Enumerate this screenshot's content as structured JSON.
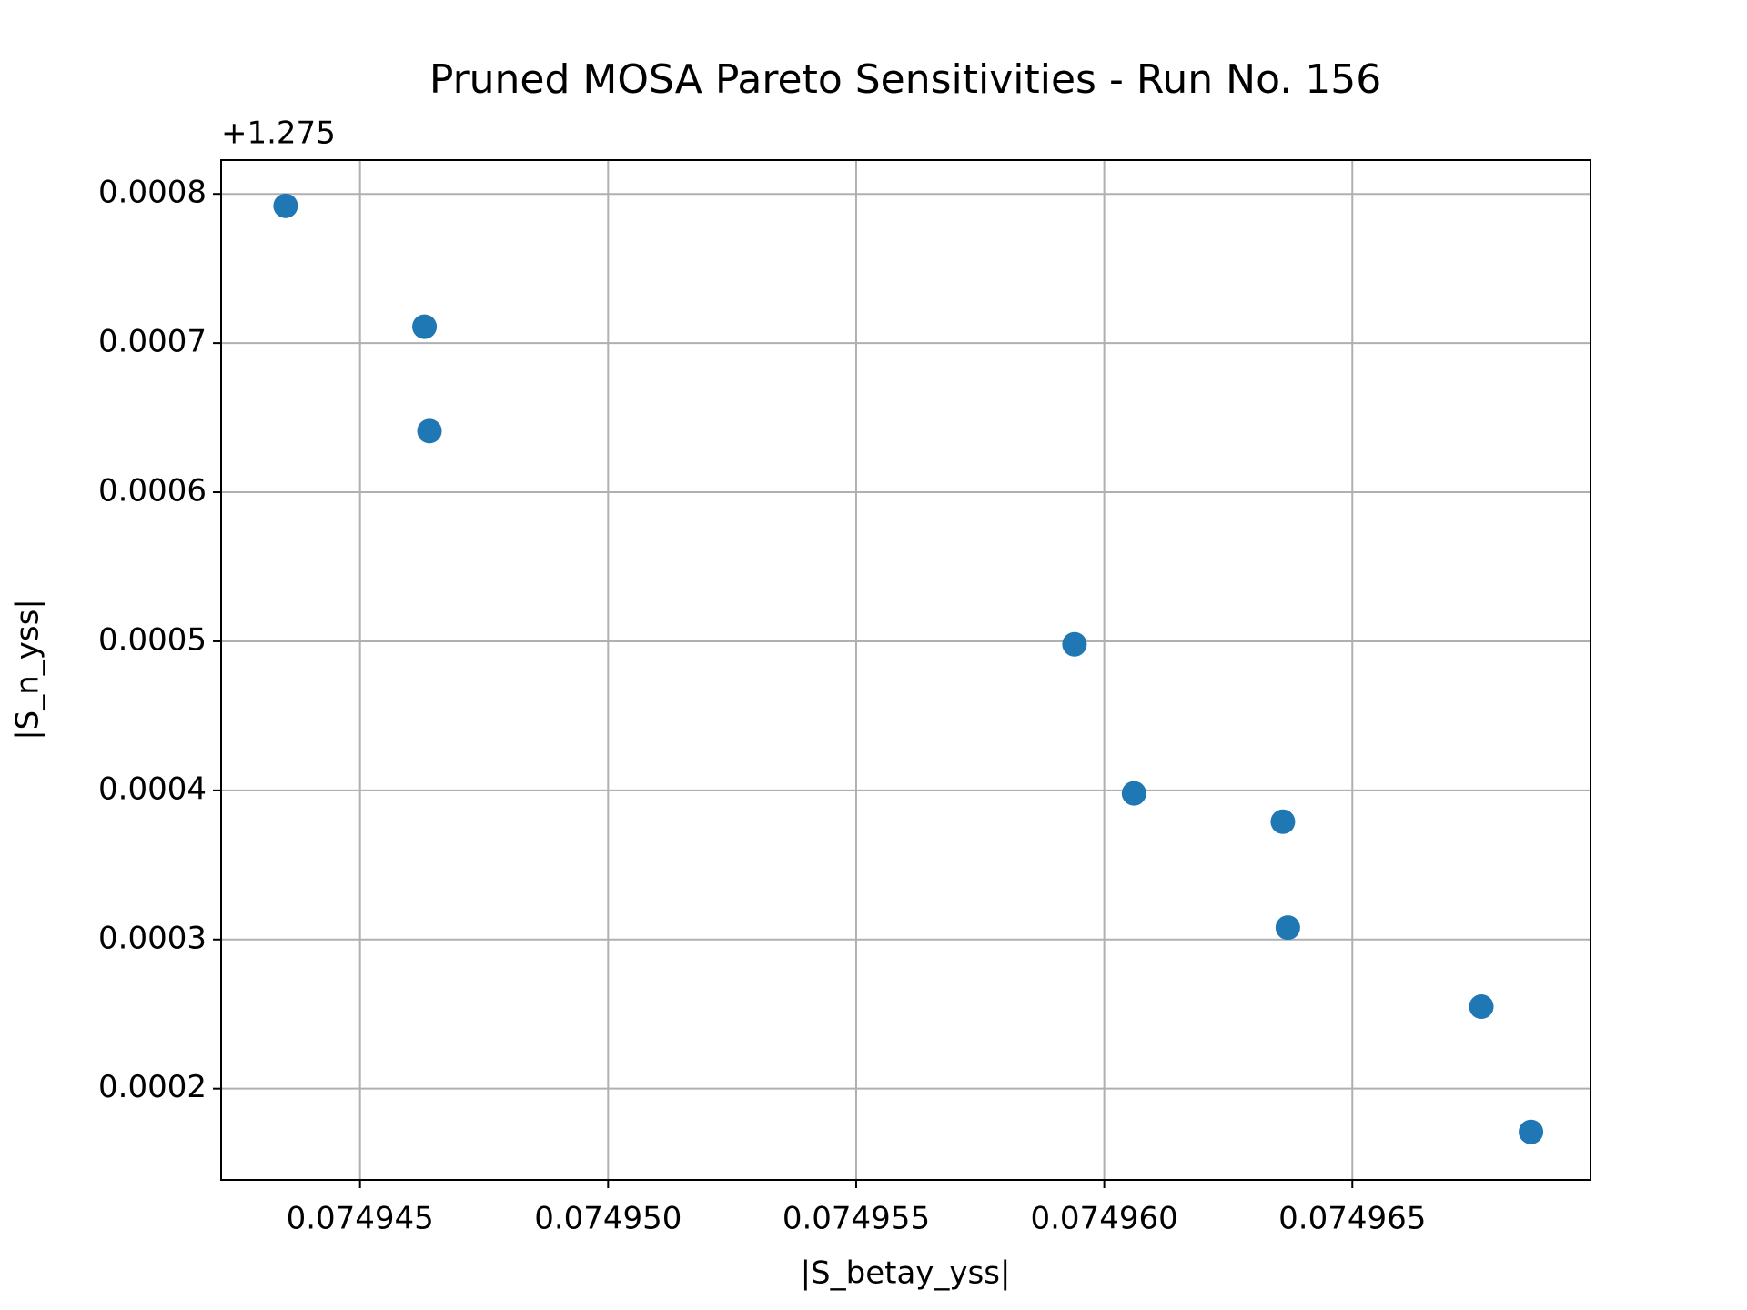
{
  "chart_data": {
    "type": "scatter",
    "title": "Pruned MOSA Pareto Sensitivities - Run No. 156",
    "xlabel": "|S_betay_yss|",
    "ylabel": "|S_n_yss|",
    "y_offset_label": "+1.275",
    "x": [
      0.0749435,
      0.0749463,
      0.0749464,
      0.0749594,
      0.0749606,
      0.0749636,
      0.0749637,
      0.0749676,
      0.0749686
    ],
    "values": [
      0.000792,
      0.000711,
      0.000641,
      0.000498,
      0.000398,
      0.000379,
      0.000308,
      0.000255,
      0.000171
    ],
    "color": "#1f77b4",
    "xlim": [
      0.0749422,
      0.0749698
    ],
    "ylim": [
      0.0001388,
      0.0008227
    ],
    "xticks": [
      0.074945,
      {
        "value": 0.07495,
        "label": "0.074950"
      },
      0.074955,
      {
        "value": 0.07496,
        "label": "0.074960"
      },
      0.074965
    ],
    "yticks": [
      0.0002,
      0.0003,
      0.0004,
      0.0005,
      0.0006,
      0.0007,
      0.0008
    ],
    "grid": true
  }
}
